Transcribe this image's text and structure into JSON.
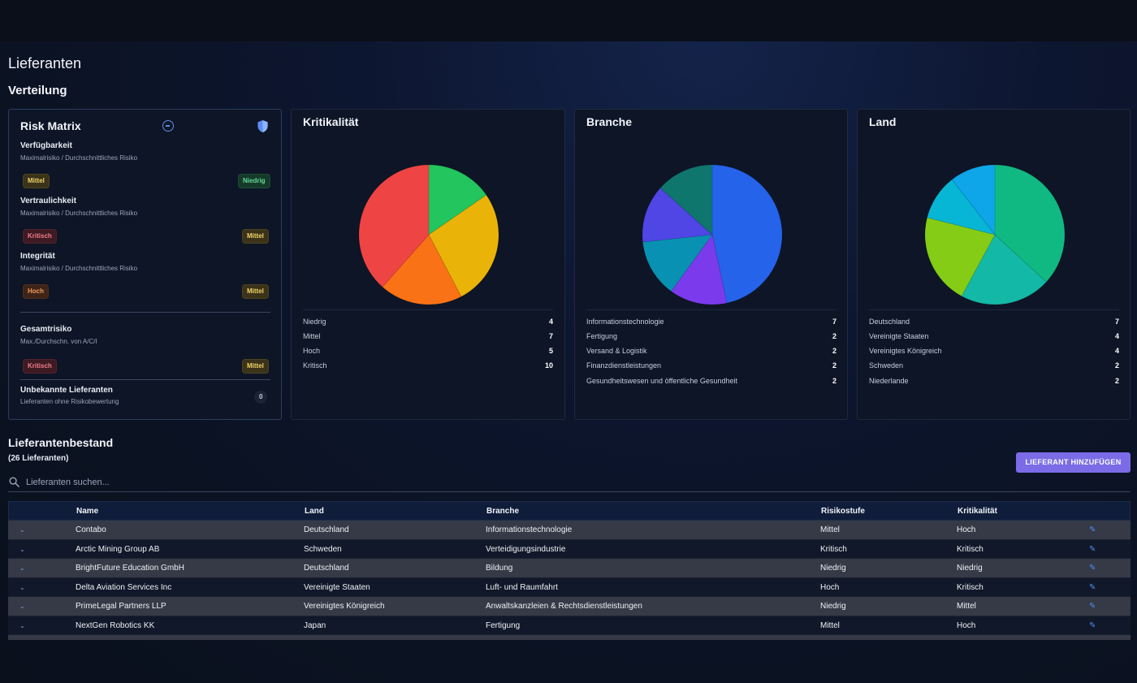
{
  "page": {
    "title": "Lieferanten",
    "section": "Verteilung"
  },
  "risk_matrix": {
    "title": "Risk Matrix",
    "rows": [
      {
        "label": "Verfügbarkeit",
        "sub": "Maximalrisiko / Durchschnittliches Risiko",
        "max": "Mittel",
        "avg": "Niedrig"
      },
      {
        "label": "Vertraulichkeit",
        "sub": "Maximalrisiko / Durchschnittliches Risiko",
        "max": "Kritisch",
        "avg": "Mittel"
      },
      {
        "label": "Integrität",
        "sub": "Maximalrisiko / Durchschnittliches Risiko",
        "max": "Hoch",
        "avg": "Mittel"
      }
    ],
    "total": {
      "label": "Gesamtrisiko",
      "sub": "Max./Durchschn. von A/C/I",
      "max": "Kritisch",
      "avg": "Mittel"
    },
    "unknown": {
      "label": "Unbekannte Lieferanten",
      "sub": "Lieferanten ohne Risikobewertung",
      "count": "0"
    }
  },
  "charts": [
    {
      "title": "Kritikalität",
      "legend": [
        {
          "label": "Niedrig",
          "value": "4"
        },
        {
          "label": "Mittel",
          "value": "7"
        },
        {
          "label": "Hoch",
          "value": "5"
        },
        {
          "label": "Kritisch",
          "value": "10"
        }
      ]
    },
    {
      "title": "Branche",
      "legend": [
        {
          "label": "Informationstechnologie",
          "value": "7"
        },
        {
          "label": "Fertigung",
          "value": "2"
        },
        {
          "label": "Versand & Logistik",
          "value": "2"
        },
        {
          "label": "Finanzdienstleistungen",
          "value": "2"
        },
        {
          "label": "Gesundheitswesen und öffentliche Gesundheit",
          "value": "2"
        }
      ]
    },
    {
      "title": "Land",
      "legend": [
        {
          "label": "Deutschland",
          "value": "7"
        },
        {
          "label": "Vereinigte Staaten",
          "value": "4"
        },
        {
          "label": "Vereinigtes Königreich",
          "value": "4"
        },
        {
          "label": "Schweden",
          "value": "2"
        },
        {
          "label": "Niederlande",
          "value": "2"
        }
      ]
    }
  ],
  "chart_data": [
    {
      "type": "pie",
      "title": "Kritikalität",
      "categories": [
        "Niedrig",
        "Mittel",
        "Hoch",
        "Kritisch"
      ],
      "values": [
        4,
        7,
        5,
        10
      ],
      "colors": [
        "#22c55e",
        "#eab308",
        "#f97316",
        "#ef4444"
      ]
    },
    {
      "type": "pie",
      "title": "Branche",
      "categories": [
        "Informationstechnologie",
        "Fertigung",
        "Versand & Logistik",
        "Finanzdienstleistungen",
        "Gesundheitswesen und öffentliche Gesundheit"
      ],
      "values": [
        7,
        2,
        2,
        2,
        2
      ],
      "colors": [
        "#2563eb",
        "#7c3aed",
        "#0891b2",
        "#4f46e5",
        "#0f766e"
      ]
    },
    {
      "type": "pie",
      "title": "Land",
      "categories": [
        "Deutschland",
        "Vereinigte Staaten",
        "Vereinigtes Königreich",
        "Schweden",
        "Niederlande"
      ],
      "values": [
        7,
        4,
        4,
        2,
        2
      ],
      "colors": [
        "#10b981",
        "#14b8a6",
        "#84cc16",
        "#06b6d4",
        "#0ea5e9"
      ]
    }
  ],
  "inventory": {
    "title": "Lieferantenbestand",
    "count": "(26 Lieferanten)",
    "add_button": "LIEFERANT HINZUFÜGEN",
    "search_placeholder": "Lieferanten suchen...",
    "columns": [
      "Name",
      "Land",
      "Branche",
      "Risikostufe",
      "Kritikalität"
    ],
    "rows": [
      {
        "name": "Contabo",
        "land": "Deutschland",
        "branche": "Informationstechnologie",
        "risk": "Mittel",
        "krit": "Hoch"
      },
      {
        "name": "Arctic Mining Group AB",
        "land": "Schweden",
        "branche": "Verteidigungsindustrie",
        "risk": "Kritisch",
        "krit": "Kritisch"
      },
      {
        "name": "BrightFuture Education GmbH",
        "land": "Deutschland",
        "branche": "Bildung",
        "risk": "Niedrig",
        "krit": "Niedrig"
      },
      {
        "name": "Delta Aviation Services Inc",
        "land": "Vereinigte Staaten",
        "branche": "Luft- und Raumfahrt",
        "risk": "Hoch",
        "krit": "Kritisch"
      },
      {
        "name": "PrimeLegal Partners LLP",
        "land": "Vereinigtes Königreich",
        "branche": "Anwaltskanzleien & Rechtsdienstleistungen",
        "risk": "Niedrig",
        "krit": "Mittel"
      },
      {
        "name": "NextGen Robotics KK",
        "land": "Japan",
        "branche": "Fertigung",
        "risk": "Mittel",
        "krit": "Hoch"
      }
    ]
  },
  "icons": {
    "expand": "chevron-down-icon",
    "edit": "pencil-icon",
    "search": "search-icon",
    "collapse": "minus-circle-icon",
    "shield": "shield-icon"
  }
}
